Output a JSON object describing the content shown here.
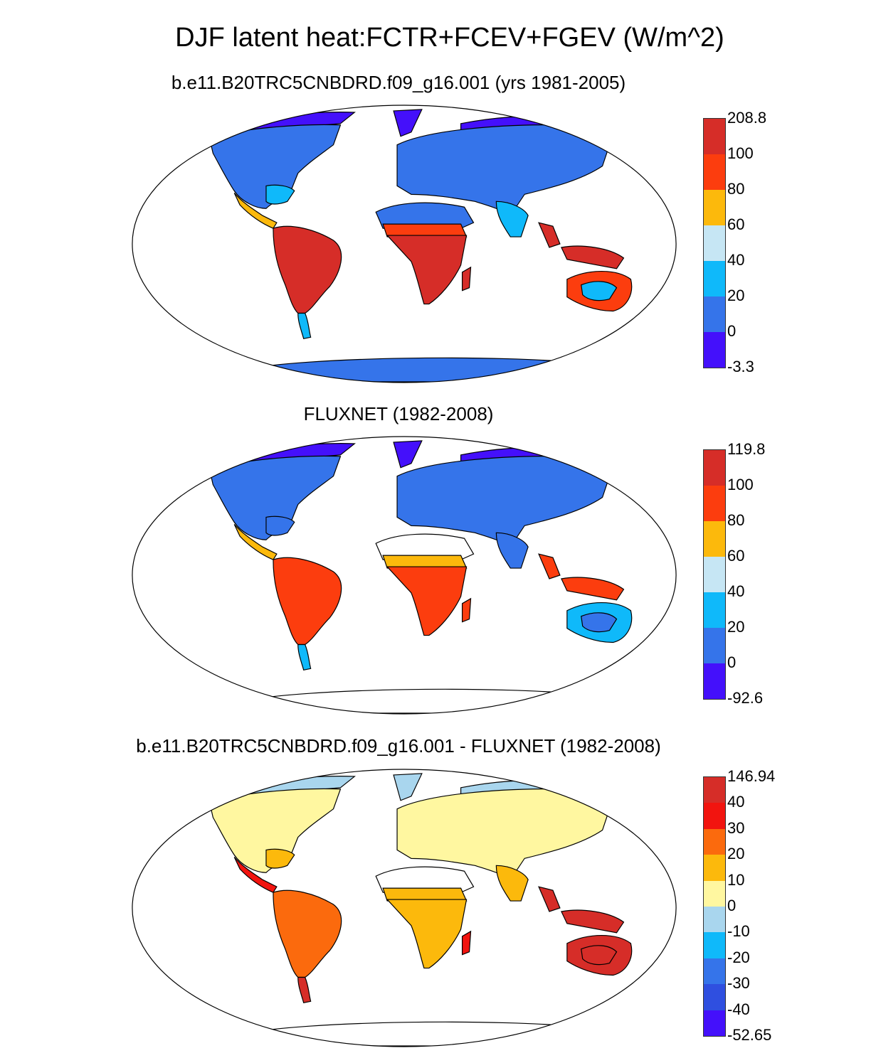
{
  "title": "DJF latent heat:FCTR+FCEV+FGEV (W/m^2)",
  "panels": [
    {
      "id": "model",
      "title": "b.e11.B20TRC5CNBDRD.f09_g16.001 (yrs 1981-2005)",
      "colors": [
        "#d62d28",
        "#fc3d0e",
        "#fcb90c",
        "#c6e6f4",
        "#0fb9fa",
        "#3574ea",
        "#4410fb"
      ],
      "labels": [
        "208.8",
        "100",
        "80",
        "60",
        "40",
        "20",
        "0",
        "-3.3"
      ],
      "regions": {
        "arctic": "#4410fb",
        "north_america": "#3574ea",
        "us_southeast": "#0fb9fa",
        "central_america": "#fcb90c",
        "south_america": "#d62d28",
        "patagonia": "#0fb9fa",
        "europe_asia": "#3574ea",
        "north_africa": "#3574ea",
        "sahel": "#fc3d0e",
        "africa_south": "#d62d28",
        "madagascar": "#d62d28",
        "south_asia": "#0fb9fa",
        "southeast_asia": "#d62d28",
        "australia": "#fc3d0e",
        "australia_core": "#0fb9fa",
        "antarctica": "#3574ea"
      }
    },
    {
      "id": "obs",
      "title": "FLUXNET (1982-2008)",
      "colors": [
        "#d62d28",
        "#fc3d0e",
        "#fcb90c",
        "#c6e6f4",
        "#0fb9fa",
        "#3574ea",
        "#4410fb"
      ],
      "labels": [
        "119.8",
        "100",
        "80",
        "60",
        "40",
        "20",
        "0",
        "-92.6"
      ],
      "regions": {
        "arctic": "#4410fb",
        "north_america": "#3574ea",
        "us_southeast": "#3574ea",
        "central_america": "#fcb90c",
        "south_america": "#fc3d0e",
        "patagonia": "#0fb9fa",
        "europe_asia": "#3574ea",
        "north_africa": "#ffffff",
        "sahel": "#fcb90c",
        "africa_south": "#fc3d0e",
        "madagascar": "#fc3d0e",
        "south_asia": "#3574ea",
        "southeast_asia": "#fc3d0e",
        "australia": "#0fb9fa",
        "australia_core": "#3574ea",
        "antarctica": "#ffffff"
      }
    },
    {
      "id": "diff",
      "title": "b.e11.B20TRC5CNBDRD.f09_g16.001 - FLUXNET (1982-2008)",
      "colors": [
        "#d62d28",
        "#f2140f",
        "#fb6a0d",
        "#fcb90c",
        "#fff7a0",
        "#a9d6ee",
        "#0fb9fa",
        "#3574ea",
        "#2f4fe0",
        "#4410fb"
      ],
      "labels": [
        "146.94",
        "40",
        "30",
        "20",
        "10",
        "0",
        "-10",
        "-20",
        "-30",
        "-40",
        "-52.65"
      ],
      "regions": {
        "arctic": "#a9d6ee",
        "north_america": "#fff7a0",
        "us_southeast": "#fcb90c",
        "central_america": "#f2140f",
        "south_america": "#fb6a0d",
        "patagonia": "#d62d28",
        "europe_asia": "#fff7a0",
        "north_africa": "#ffffff",
        "sahel": "#fcb90c",
        "africa_south": "#fcb90c",
        "madagascar": "#f2140f",
        "south_asia": "#fcb90c",
        "southeast_asia": "#d62d28",
        "australia": "#d62d28",
        "australia_core": "#d62d28",
        "antarctica": "#ffffff"
      }
    }
  ]
}
